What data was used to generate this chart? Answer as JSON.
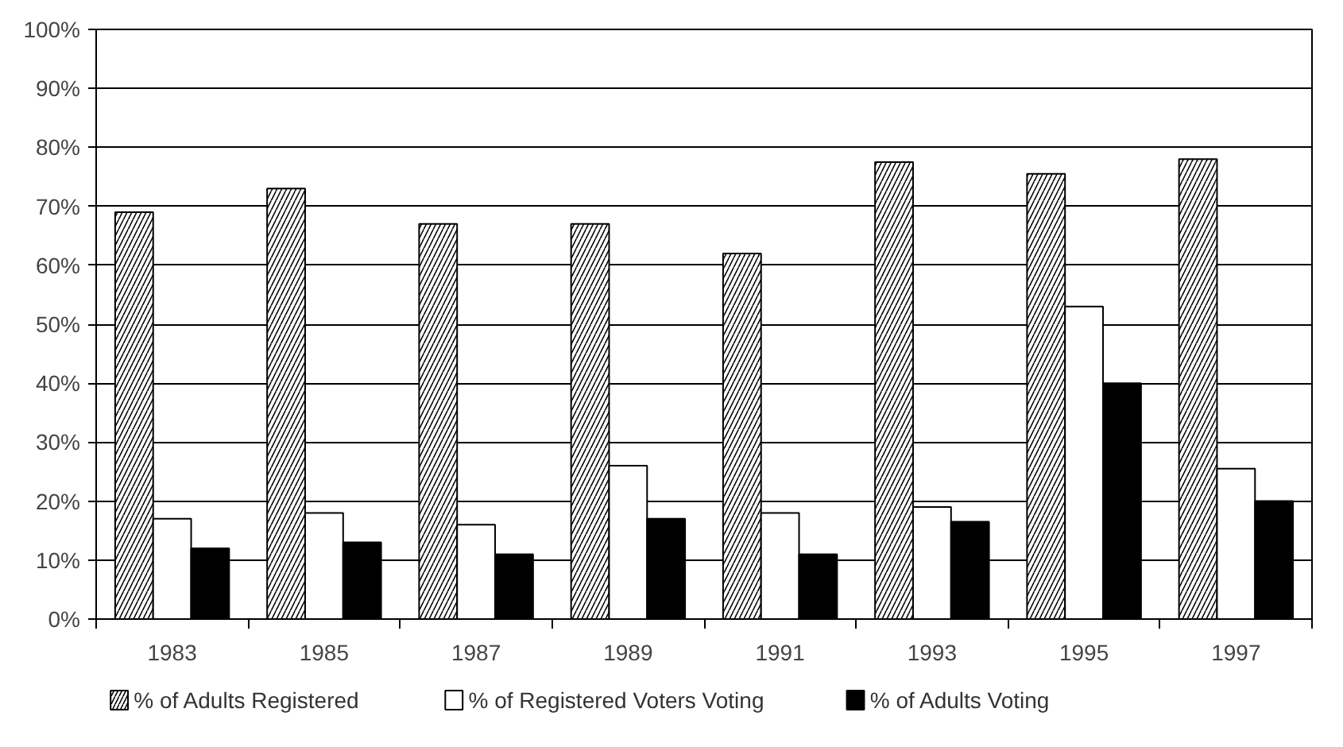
{
  "chart_data": {
    "type": "bar",
    "categories": [
      "1983",
      "1985",
      "1987",
      "1989",
      "1991",
      "1993",
      "1995",
      "1997"
    ],
    "series": [
      {
        "name": "% of Adults Registered",
        "color": "#ffffff",
        "values": [
          69,
          73,
          67,
          67,
          62,
          77.5,
          75.5,
          78
        ]
      },
      {
        "name": "% of Registered Voters Voting",
        "color": "#ffffff",
        "values": [
          17,
          18,
          16,
          26,
          18,
          19,
          53,
          25.5
        ]
      },
      {
        "name": "% of Adults Voting",
        "color": "#000000",
        "values": [
          12,
          13,
          11,
          17,
          11,
          16.5,
          40,
          20
        ]
      }
    ],
    "ylim": [
      0,
      100
    ],
    "yticks": [
      {
        "value": 0,
        "label": "0%"
      },
      {
        "value": 10,
        "label": "10%"
      },
      {
        "value": 20,
        "label": "20%"
      },
      {
        "value": 30,
        "label": "30%"
      },
      {
        "value": 40,
        "label": "40%"
      },
      {
        "value": 50,
        "label": "50%"
      },
      {
        "value": 60,
        "label": "60%"
      },
      {
        "value": 70,
        "label": "70%"
      },
      {
        "value": 80,
        "label": "80%"
      },
      {
        "value": 90,
        "label": "90%"
      },
      {
        "value": 100,
        "label": "100%"
      }
    ],
    "grid": "y",
    "legend": "bottom"
  }
}
